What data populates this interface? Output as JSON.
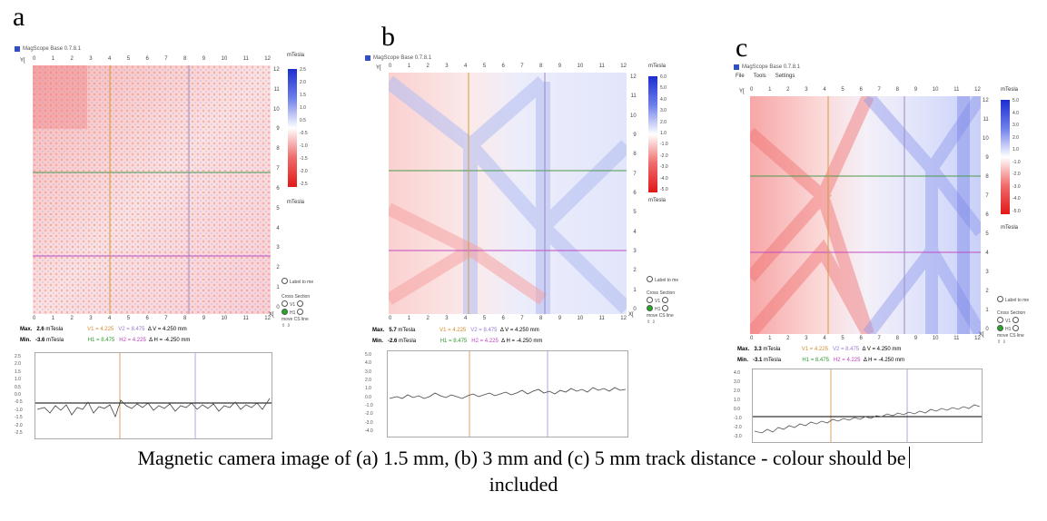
{
  "panels": [
    {
      "letter": "a",
      "app_title": "MagScope Base 0.7.8.1",
      "menus": [],
      "y_axis_label": "Y[",
      "x_axis_label": "X[",
      "ticks": [
        "0",
        "1",
        "2",
        "3",
        "4",
        "5",
        "6",
        "7",
        "8",
        "9",
        "10",
        "11",
        "12"
      ],
      "colorbar_top_unit": "mTesla",
      "colorbar_bottom_unit": "mTesla",
      "colorbar_values": [
        "2.5",
        "2.0",
        "1.5",
        "1.0",
        "0.5",
        "-0.5",
        "-1.0",
        "-1.5",
        "-2.0",
        "-2.5"
      ],
      "cross_section_label": "Cross Section",
      "cross_options": [
        "V1",
        "V2",
        "H1",
        "H2"
      ],
      "move_cs_label": "move CS line",
      "label_to_me": "Label to me",
      "max_label": "Max.",
      "max_value": "2.6",
      "min_label": "Min.",
      "min_value": "-3.6",
      "unit": "mTesla",
      "v1": "V1 = 4.225",
      "v2": "V2 = 8.475",
      "dv": "Δ V = 4.250",
      "dv_unit": "mm",
      "h1": "H1 = 8.475",
      "h2": "H2 = 4.225",
      "dh": "Δ H = -4.250 mm",
      "profile_ticks": [
        "2.5",
        "2.0",
        "1.5",
        "1.0",
        "0.5",
        "0.0",
        "-0.5",
        "-1.0",
        "-1.5",
        "-2.0",
        "-2.5"
      ],
      "colors": {
        "accent_pos": "#2a3fd8",
        "accent_neg": "#e8262a"
      }
    },
    {
      "letter": "b",
      "app_title": "MagScope Base 0.7.8.1",
      "menus": [],
      "y_axis_label": "Y[",
      "x_axis_label": "X[",
      "ticks": [
        "0",
        "1",
        "2",
        "3",
        "4",
        "5",
        "6",
        "7",
        "8",
        "9",
        "10",
        "11",
        "12"
      ],
      "colorbar_top_unit": "mTesla",
      "colorbar_bottom_unit": "mTesla",
      "colorbar_values": [
        "6.0",
        "5.0",
        "4.0",
        "3.0",
        "2.0",
        "1.0",
        "-1.0",
        "-2.0",
        "-3.0",
        "-4.0",
        "-5.0"
      ],
      "cross_section_label": "Cross Section",
      "cross_options": [
        "V1",
        "V2",
        "H1",
        "H2"
      ],
      "move_cs_label": "move CS line",
      "label_to_me": "Label to me",
      "max_label": "Max.",
      "max_value": "5.7",
      "min_label": "Min.",
      "min_value": "-2.6",
      "unit": "mTesla",
      "v1": "V1 = 4.225",
      "v2": "V2 = 8.475",
      "dv": "Δ V = 4.250",
      "dv_unit": "mm",
      "h1": "H1 = 8.475",
      "h2": "H2 = 4.225",
      "dh": "Δ H = -4.250 mm",
      "profile_ticks": [
        "5.0",
        "4.0",
        "3.0",
        "2.0",
        "1.0",
        "0.0",
        "-1.0",
        "-2.0",
        "-3.0",
        "-4.0"
      ],
      "colors": {
        "accent_pos": "#2a3fd8",
        "accent_neg": "#e8262a"
      }
    },
    {
      "letter": "c",
      "app_title": "MagScope Base 0.7.8.1",
      "menus": [
        "File",
        "Tools",
        "Settings"
      ],
      "y_axis_label": "Y[",
      "x_axis_label": "X[",
      "ticks": [
        "0",
        "1",
        "2",
        "3",
        "4",
        "5",
        "6",
        "7",
        "8",
        "9",
        "10",
        "11",
        "12"
      ],
      "colorbar_top_unit": "mTesla",
      "colorbar_bottom_unit": "mTesla",
      "colorbar_values": [
        "5.0",
        "4.0",
        "3.0",
        "2.0",
        "1.0",
        "-1.0",
        "-2.0",
        "-3.0",
        "-4.0",
        "-5.0"
      ],
      "cross_section_label": "Cross Section",
      "cross_options": [
        "V1",
        "V2",
        "H1",
        "H2"
      ],
      "move_cs_label": "move CS line",
      "label_to_me": "Label to me",
      "max_label": "Max.",
      "max_value": "3.3",
      "min_label": "Min.",
      "min_value": "-3.1",
      "unit": "mTesla",
      "v1": "V1 = 4.225",
      "v2": "V2 = 8.475",
      "dv": "Δ V = 4.250",
      "dv_unit": "mm",
      "h1": "H1 = 8.475",
      "h2": "H2 = 4.225",
      "dh": "Δ H = -4.250 mm",
      "profile_ticks": [
        "4.0",
        "3.0",
        "2.0",
        "1.0",
        "0.0",
        "-1.0",
        "-2.0",
        "-3.0"
      ],
      "colors": {
        "accent_pos": "#2a3fd8",
        "accent_neg": "#e8262a"
      }
    }
  ],
  "caption_line1": "Magnetic camera image of (a) 1.5 mm, (b) 3 mm and (c) 5 mm track distance - colour should be",
  "caption_line2": "included"
}
